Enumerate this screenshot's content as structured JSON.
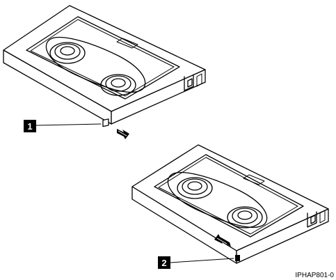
{
  "callouts": [
    {
      "number": "1"
    },
    {
      "number": "2"
    }
  ],
  "figure_id": "IPHAP801-0",
  "colors": {
    "line": "#000000",
    "background": "#ffffff",
    "callout_bg": "#000000",
    "callout_text": "#ffffff"
  }
}
